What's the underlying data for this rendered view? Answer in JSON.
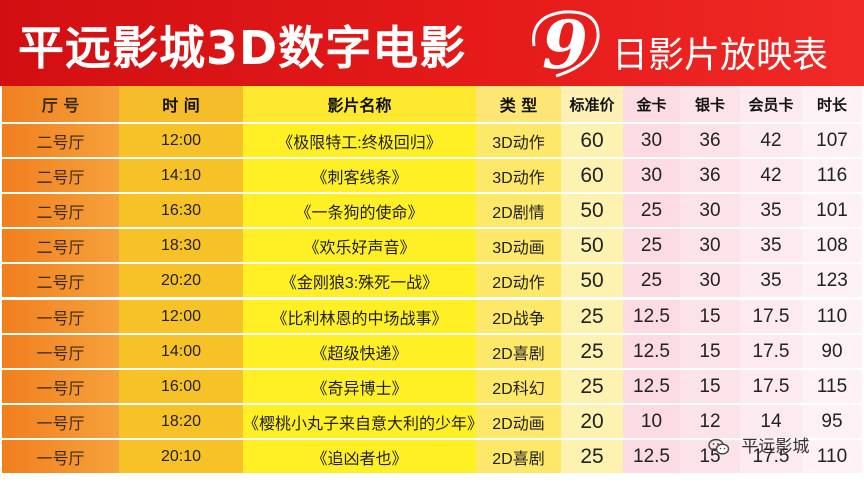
{
  "banner": {
    "title": "平远影城3D数字电影",
    "day": "9",
    "subtitle": "日影片放映表"
  },
  "table": {
    "headers": [
      "厅 号",
      "时 间",
      "影片名称",
      "类 型",
      "标准价",
      "金卡",
      "银卡",
      "会员卡",
      "时长"
    ],
    "rows": [
      [
        "二号厅",
        "12:00",
        "《极限特工:终极回归》",
        "3D动作",
        "60",
        "30",
        "36",
        "42",
        "107"
      ],
      [
        "二号厅",
        "14:10",
        "《刺客线条》",
        "3D动作",
        "60",
        "30",
        "36",
        "42",
        "116"
      ],
      [
        "二号厅",
        "16:30",
        "《一条狗的使命》",
        "2D剧情",
        "50",
        "25",
        "30",
        "35",
        "101"
      ],
      [
        "二号厅",
        "18:30",
        "《欢乐好声音》",
        "3D动画",
        "50",
        "25",
        "30",
        "35",
        "108"
      ],
      [
        "二号厅",
        "20:20",
        "《金刚狼3:殊死一战》",
        "2D动作",
        "50",
        "25",
        "30",
        "35",
        "123"
      ],
      [
        "一号厅",
        "12:00",
        "《比利林恩的中场战事》",
        "2D战争",
        "25",
        "12.5",
        "15",
        "17.5",
        "110"
      ],
      [
        "一号厅",
        "14:00",
        "《超级快递》",
        "2D喜剧",
        "25",
        "12.5",
        "15",
        "17.5",
        "90"
      ],
      [
        "一号厅",
        "16:00",
        "《奇异博士》",
        "2D科幻",
        "25",
        "12.5",
        "15",
        "17.5",
        "115"
      ],
      [
        "一号厅",
        "18:20",
        "《樱桃小丸子来自意大利的少年》",
        "2D动画",
        "20",
        "10",
        "12",
        "14",
        "95"
      ],
      [
        "一号厅",
        "20:10",
        "《追凶者也》",
        "2D喜剧",
        "25",
        "12.5",
        "15",
        "17.5",
        "110"
      ]
    ]
  },
  "watermark": {
    "text": "平远影城",
    "icon": "wechat-icon"
  }
}
